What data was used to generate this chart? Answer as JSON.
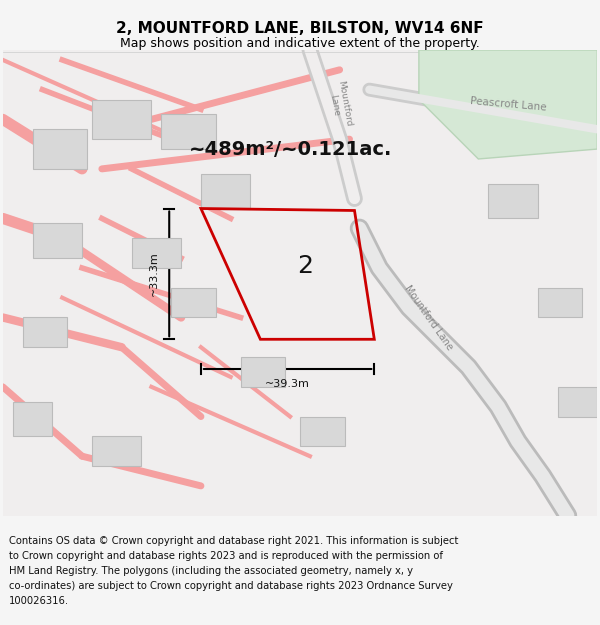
{
  "title": "2, MOUNTFORD LANE, BILSTON, WV14 6NF",
  "subtitle": "Map shows position and indicative extent of the property.",
  "footer": "Contains OS data © Crown copyright and database right 2021. This information is subject to Crown copyright and database rights 2023 and is reproduced with the permission of HM Land Registry. The polygons (including the associated geometry, namely x, y co-ordinates) are subject to Crown copyright and database rights 2023 Ordnance Survey 100026316.",
  "area_text": "~489m²/~0.121ac.",
  "label_2": "2",
  "dim_horiz": "~39.3m",
  "dim_vert": "~33.3m",
  "bg_color": "#f5f5f5",
  "map_bg": "#ffffff",
  "road_color_light": "#f5a0a0",
  "road_color_dark": "#e06060",
  "plot_color": "#cc0000",
  "dim_color": "#000000",
  "green_area": "#d8ead8",
  "grey_road": "#c8c8c8",
  "title_fontsize": 11,
  "subtitle_fontsize": 9,
  "footer_fontsize": 7.2
}
